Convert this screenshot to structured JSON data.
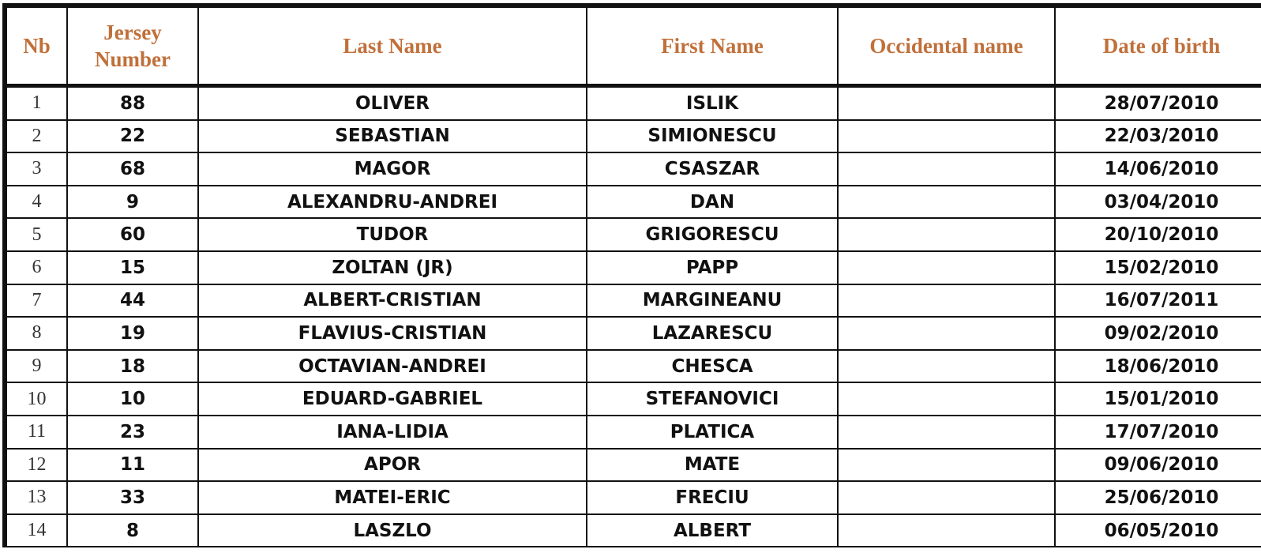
{
  "header": {
    "colors": {
      "header_text": "#c0703a",
      "border": "#111111"
    },
    "columns": [
      "Nb",
      "Jersey Number",
      "Last Name",
      "First Name",
      "Occidental name",
      "Date of birth"
    ]
  },
  "rows": [
    {
      "nb": "1",
      "jersey": "88",
      "last": "OLIVER",
      "first": "ISLIK",
      "occidental": "",
      "dob": "28/07/2010"
    },
    {
      "nb": "2",
      "jersey": "22",
      "last": "SEBASTIAN",
      "first": "SIMIONESCU",
      "occidental": "",
      "dob": "22/03/2010"
    },
    {
      "nb": "3",
      "jersey": "68",
      "last": "MAGOR",
      "first": "CSASZAR",
      "occidental": "",
      "dob": "14/06/2010"
    },
    {
      "nb": "4",
      "jersey": "9",
      "last": "ALEXANDRU-ANDREI",
      "first": "DAN",
      "occidental": "",
      "dob": "03/04/2010"
    },
    {
      "nb": "5",
      "jersey": "60",
      "last": "TUDOR",
      "first": "GRIGORESCU",
      "occidental": "",
      "dob": "20/10/2010"
    },
    {
      "nb": "6",
      "jersey": "15",
      "last": "ZOLTAN (JR)",
      "first": "PAPP",
      "occidental": "",
      "dob": "15/02/2010"
    },
    {
      "nb": "7",
      "jersey": "44",
      "last": "ALBERT-CRISTIAN",
      "first": "MARGINEANU",
      "occidental": "",
      "dob": "16/07/2011"
    },
    {
      "nb": "8",
      "jersey": "19",
      "last": "FLAVIUS-CRISTIAN",
      "first": "LAZARESCU",
      "occidental": "",
      "dob": "09/02/2010"
    },
    {
      "nb": "9",
      "jersey": "18",
      "last": "OCTAVIAN-ANDREI",
      "first": "CHESCA",
      "occidental": "",
      "dob": "18/06/2010"
    },
    {
      "nb": "10",
      "jersey": "10",
      "last": "EDUARD-GABRIEL",
      "first": "STEFANOVICI",
      "occidental": "",
      "dob": "15/01/2010"
    },
    {
      "nb": "11",
      "jersey": "23",
      "last": "IANA-LIDIA",
      "first": "PLATICA",
      "occidental": "",
      "dob": "17/07/2010"
    },
    {
      "nb": "12",
      "jersey": "11",
      "last": "APOR",
      "first": "MATE",
      "occidental": "",
      "dob": "09/06/2010"
    },
    {
      "nb": "13",
      "jersey": "33",
      "last": "MATEI-ERIC",
      "first": "FRECIU",
      "occidental": "",
      "dob": "25/06/2010"
    },
    {
      "nb": "14",
      "jersey": "8",
      "last": "LASZLO",
      "first": "ALBERT",
      "occidental": "",
      "dob": "06/05/2010"
    }
  ]
}
